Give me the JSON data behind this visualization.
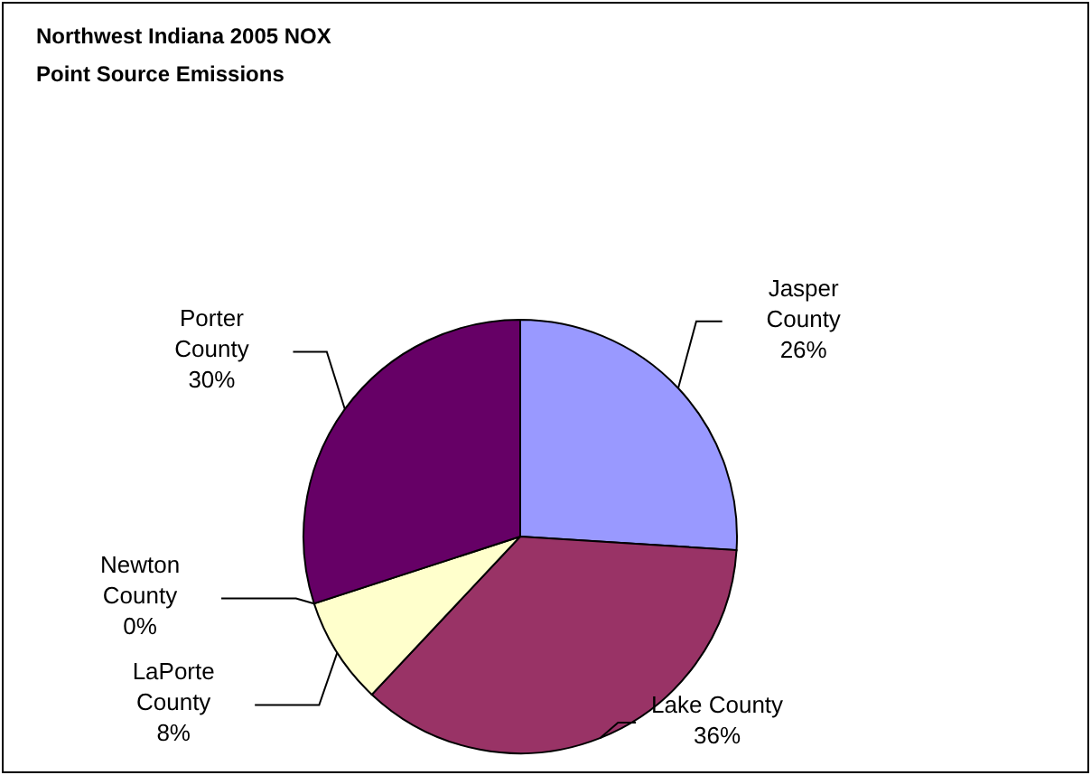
{
  "chart_data": {
    "type": "pie",
    "title": "Northwest Indiana 2005 NOX\nPoint Source Emissions",
    "categories": [
      "Jasper County",
      "Lake County",
      "LaPorte County",
      "Newton County",
      "Porter County"
    ],
    "values": [
      26,
      36,
      8,
      0,
      30
    ],
    "value_labels": [
      "26%",
      "36%",
      "8%",
      "0%",
      "30%"
    ],
    "colors": [
      "#9999ff",
      "#993366",
      "#ffffcc",
      "#ccffff",
      "#660066"
    ]
  }
}
